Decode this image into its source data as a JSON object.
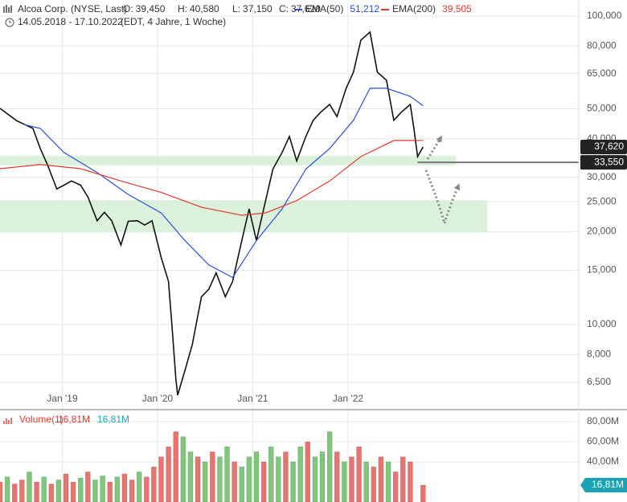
{
  "chart_data": [
    {
      "type": "line",
      "title": "Alcoa Corp. (NYSE, Last)",
      "ohlc": [
        {
          "name": "O:",
          "value": 39.45,
          "label": "39,450"
        },
        {
          "name": "H:",
          "value": 40.58,
          "label": "40,580"
        },
        {
          "name": "L:",
          "value": 37.15,
          "label": "37,150"
        },
        {
          "name": "C:",
          "value": 37.62,
          "label": "37,620"
        }
      ],
      "subtitle": "14.05.2018 - 17.10.2022",
      "note": "(EDT, 4 Jahre, 1 Woche)",
      "log_scale": true,
      "grid": true,
      "xlim": [
        0,
        316
      ],
      "xticks": [
        {
          "value": 34,
          "label": "Jan '19"
        },
        {
          "value": 86,
          "label": "Jan '20"
        },
        {
          "value": 138,
          "label": "Jan '21"
        },
        {
          "value": 190,
          "label": "Jan '22"
        }
      ],
      "ylim": [
        5.36,
        112.7
      ],
      "yticks": [
        {
          "value": 100,
          "label": "100,000"
        },
        {
          "value": 80,
          "label": "80,000"
        },
        {
          "value": 65,
          "label": "65,000"
        },
        {
          "value": 50,
          "label": "50,000"
        },
        {
          "value": 40,
          "label": "40,000"
        },
        {
          "value": 30,
          "label": "30,000"
        },
        {
          "value": 25,
          "label": "25,000"
        },
        {
          "value": 20,
          "label": "20,000"
        },
        {
          "value": 15,
          "label": "15,000"
        },
        {
          "value": 10,
          "label": "10,000"
        },
        {
          "value": 8,
          "label": "8,000"
        },
        {
          "value": 6.5,
          "label": "6,500"
        }
      ],
      "series": [
        {
          "color": "#111111",
          "x": [
            0,
            9,
            18,
            22,
            26,
            31,
            35,
            39,
            44,
            48,
            53,
            57,
            61,
            66,
            70,
            75,
            79,
            83,
            88,
            92,
            94,
            96,
            97,
            101,
            105,
            110,
            114,
            118,
            123,
            127,
            132,
            136,
            140,
            145,
            149,
            154,
            158,
            162,
            167,
            171,
            175,
            180,
            184,
            189,
            193,
            197,
            202,
            206,
            211,
            215,
            219,
            224,
            226,
            228,
            231
          ],
          "values": [
            50.2,
            45.8,
            43.2,
            37.2,
            32.9,
            27.5,
            28.3,
            29.2,
            28.3,
            25.9,
            21.7,
            23.1,
            21.7,
            18.1,
            21.6,
            21.7,
            21.0,
            21.7,
            16.5,
            13.8,
            9.7,
            6.7,
            5.9,
            7.1,
            8.6,
            12.3,
            13.0,
            14.7,
            12.3,
            13.8,
            18.7,
            23.7,
            18.7,
            25.2,
            31.9,
            36.1,
            40.7,
            33.9,
            40.7,
            45.9,
            48.7,
            51.7,
            47.2,
            58.3,
            65.8,
            83.5,
            88.7,
            65.8,
            61.9,
            45.9,
            48.7,
            51.7,
            43.2,
            35.0,
            37.62
          ]
        },
        {
          "name": "EMA(50)",
          "color": "#2a4fd8",
          "last_label": "51,212",
          "x": [
            13,
            22,
            35,
            53,
            70,
            88,
            101,
            114,
            127,
            140,
            154,
            167,
            180,
            193,
            202,
            211,
            224,
            231
          ],
          "values": [
            44.5,
            43.2,
            36.1,
            31.1,
            26.4,
            23.0,
            18.7,
            15.6,
            14.2,
            18.7,
            23.7,
            31.9,
            37.2,
            45.9,
            58.3,
            58.3,
            54.9,
            51.212
          ]
        },
        {
          "name": "EMA(200)",
          "color": "#e03a2f",
          "last_label": "39,505",
          "x": [
            0,
            22,
            44,
            66,
            88,
            110,
            132,
            145,
            162,
            180,
            197,
            215,
            231
          ],
          "values": [
            32.0,
            33.0,
            32.0,
            29.2,
            26.8,
            24.0,
            22.6,
            23.0,
            25.2,
            29.2,
            35.0,
            39.5,
            39.505
          ]
        }
      ],
      "zones": [
        {
          "from": 32.8,
          "to": 35.2,
          "x_from": 0,
          "x_to": 249,
          "color": "#d6efd6"
        },
        {
          "from": 19.9,
          "to": 25.3,
          "x_from": 0,
          "x_to": 266,
          "color": "#d6efd6"
        }
      ],
      "level": {
        "value": 33.55,
        "label": "33,550",
        "x_from": 228,
        "color": "#777777"
      },
      "last_marker": {
        "value": 37.62,
        "label": "37,620"
      }
    },
    {
      "type": "bar",
      "title": "Volume(1)",
      "legend_value_labels": [
        "16,81M",
        "16,81M"
      ],
      "badge_label": "16,81M",
      "xlim": [
        0,
        316
      ],
      "ylim": [
        0,
        90.4
      ],
      "yticks": [
        {
          "value": 40,
          "label": "40,00M"
        },
        {
          "value": 60,
          "label": "60,00M"
        },
        {
          "value": 80,
          "label": "80,00M"
        }
      ],
      "x": [
        0,
        4,
        8,
        12,
        16,
        20,
        24,
        28,
        32,
        36,
        40,
        44,
        48,
        52,
        56,
        60,
        64,
        68,
        72,
        76,
        80,
        84,
        88,
        92,
        96,
        100,
        104,
        108,
        112,
        116,
        120,
        124,
        128,
        132,
        136,
        140,
        144,
        148,
        152,
        156,
        160,
        164,
        168,
        172,
        176,
        180,
        184,
        188,
        192,
        196,
        200,
        204,
        208,
        212,
        216,
        220,
        224,
        231
      ],
      "values": [
        20,
        25,
        18,
        22,
        30,
        20,
        25,
        18,
        22,
        28,
        20,
        24,
        30,
        22,
        26,
        20,
        25,
        28,
        22,
        30,
        25,
        35,
        45,
        55,
        70,
        65,
        50,
        45,
        40,
        50,
        45,
        55,
        40,
        35,
        45,
        50,
        40,
        55,
        45,
        50,
        40,
        55,
        60,
        45,
        50,
        70,
        50,
        40,
        45,
        55,
        40,
        35,
        45,
        40,
        30,
        45,
        40,
        16.81
      ],
      "colors": [
        "#e8736f",
        "#7fc77a",
        "#e8736f",
        "#e8736f",
        "#7fc77a",
        "#e8736f",
        "#7fc77a",
        "#e8736f",
        "#7fc77a",
        "#e8736f",
        "#e8736f",
        "#7fc77a",
        "#e8736f",
        "#7fc77a",
        "#7fc77a",
        "#e8736f",
        "#7fc77a",
        "#e8736f",
        "#e8736f",
        "#7fc77a",
        "#e8736f",
        "#e8736f",
        "#e8736f",
        "#e8736f",
        "#e8736f",
        "#7fc77a",
        "#7fc77a",
        "#e8736f",
        "#7fc77a",
        "#e8736f",
        "#7fc77a",
        "#7fc77a",
        "#e8736f",
        "#7fc77a",
        "#7fc77a",
        "#7fc77a",
        "#e8736f",
        "#7fc77a",
        "#7fc77a",
        "#e8736f",
        "#7fc77a",
        "#7fc77a",
        "#e8736f",
        "#7fc77a",
        "#7fc77a",
        "#7fc77a",
        "#e8736f",
        "#7fc77a",
        "#e8736f",
        "#e8736f",
        "#7fc77a",
        "#e8736f",
        "#e8736f",
        "#7fc77a",
        "#e8736f",
        "#e8736f",
        "#e8736f",
        "#e8736f"
      ],
      "badge_color": "#1aa3b5"
    }
  ]
}
